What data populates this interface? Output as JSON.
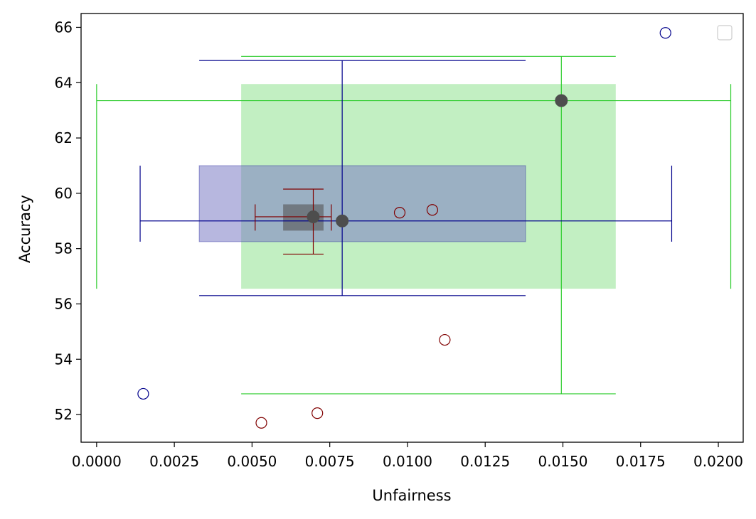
{
  "chart_data": {
    "type": "scatter",
    "xlabel": "Unfairness",
    "ylabel": "Accuracy",
    "xlim": [
      -0.0005,
      0.0208
    ],
    "ylim": [
      51.0,
      66.5
    ],
    "x_ticks": [
      "0.0000",
      "0.0025",
      "0.0050",
      "0.0075",
      "0.0100",
      "0.0125",
      "0.0150",
      "0.0175",
      "0.0200"
    ],
    "y_ticks": [
      "52",
      "54",
      "56",
      "58",
      "60",
      "62",
      "64",
      "66"
    ],
    "grid": false,
    "legend": "top-right, empty",
    "colors": {
      "green": "#2ecc2e",
      "green_fill": "#90e290",
      "navy": "#00008b",
      "navy_fill": "#7b7bc4",
      "darkred": "#800000",
      "dark_gray_fill": "#555555",
      "marker": "#4d4d4d"
    },
    "groups": [
      {
        "color_key": "green",
        "center": [
          0.01495,
          63.35
        ],
        "xerr_bars": [
          0.0,
          0.0204
        ],
        "xerr_cap": [
          56.55,
          63.95
        ],
        "yerr_bars": [
          52.75,
          64.95
        ],
        "yerr_cap": [
          0.00465,
          0.0167
        ],
        "box": {
          "x": [
            0.00465,
            0.0167
          ],
          "y": [
            56.55,
            63.95
          ]
        },
        "points": []
      },
      {
        "color_key": "navy",
        "center": [
          0.0079,
          59.0
        ],
        "xerr_bars": [
          0.0014,
          0.0185
        ],
        "xerr_cap": [
          58.25,
          61.0
        ],
        "yerr_bars": [
          56.3,
          64.8
        ],
        "yerr_cap": [
          0.0033,
          0.0138
        ],
        "box": {
          "x": [
            0.0033,
            0.0138
          ],
          "y": [
            58.25,
            61.0
          ]
        },
        "points": [
          [
            0.0015,
            52.75
          ],
          [
            0.0183,
            65.8
          ]
        ]
      },
      {
        "color_key": "darkred",
        "center": [
          0.00697,
          59.15
        ],
        "xerr_bars": [
          0.0051,
          0.00755
        ],
        "xerr_cap": [
          58.65,
          59.6
        ],
        "yerr_bars": [
          57.8,
          60.15
        ],
        "yerr_cap": [
          0.006,
          0.0073
        ],
        "box": {
          "x": [
            0.006,
            0.0073
          ],
          "y": [
            58.65,
            59.6
          ]
        },
        "points": [
          [
            0.0053,
            51.7
          ],
          [
            0.0071,
            52.05
          ],
          [
            0.00975,
            59.3
          ],
          [
            0.0108,
            59.4
          ],
          [
            0.0112,
            54.7
          ]
        ]
      }
    ]
  }
}
